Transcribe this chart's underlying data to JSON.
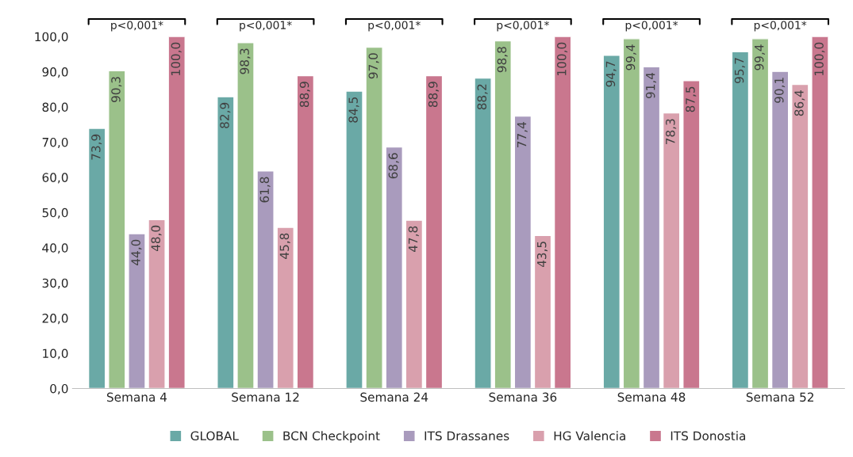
{
  "chart_data": {
    "type": "bar",
    "categories": [
      "Semana 4",
      "Semana 12",
      "Semana 24",
      "Semana 36",
      "Semana 48",
      "Semana 52"
    ],
    "series": [
      {
        "name": "GLOBAL",
        "color": "#6aa9a6",
        "values": [
          73.9,
          82.9,
          84.5,
          88.2,
          94.7,
          95.7
        ],
        "value_labels": [
          "73,9",
          "82,9",
          "84,5",
          "88,2",
          "94,7",
          "95,7"
        ]
      },
      {
        "name": "BCN Checkpoint",
        "color": "#9bc18a",
        "values": [
          90.3,
          98.3,
          97.0,
          98.8,
          99.4,
          99.4
        ],
        "value_labels": [
          "90,3",
          "98,3",
          "97,0",
          "98,8",
          "99,4",
          "99,4"
        ]
      },
      {
        "name": "ITS Drassanes",
        "color": "#a99bbd",
        "values": [
          44.0,
          61.8,
          68.6,
          77.4,
          91.4,
          90.1
        ],
        "value_labels": [
          "44,0",
          "61,8",
          "68,6",
          "77,4",
          "91,4",
          "90,1"
        ]
      },
      {
        "name": "HG Valencia",
        "color": "#d9a0ad",
        "values": [
          48.0,
          45.8,
          47.8,
          43.5,
          78.3,
          86.4
        ],
        "value_labels": [
          "48,0",
          "45,8",
          "47,8",
          "43,5",
          "78,3",
          "86,4"
        ]
      },
      {
        "name": "ITS Donostia",
        "color": "#c9778e",
        "values": [
          100.0,
          88.9,
          88.9,
          100.0,
          87.5,
          100.0
        ],
        "value_labels": [
          "100,0",
          "88,9",
          "88,9",
          "100,0",
          "87,5",
          "100,0"
        ]
      }
    ],
    "ylim": [
      0,
      100
    ],
    "yticks": [
      {
        "value": 0,
        "label": "0,0"
      },
      {
        "value": 10,
        "label": "10,0"
      },
      {
        "value": 20,
        "label": "20,0"
      },
      {
        "value": 30,
        "label": "30,0"
      },
      {
        "value": 40,
        "label": "40,0"
      },
      {
        "value": 50,
        "label": "50,0"
      },
      {
        "value": 60,
        "label": "60,0"
      },
      {
        "value": 70,
        "label": "70,0"
      },
      {
        "value": 80,
        "label": "80,0"
      },
      {
        "value": 90,
        "label": "90,0"
      },
      {
        "value": 100,
        "label": "100,0"
      }
    ],
    "annotations": [
      "p<0,001*",
      "p<0,001*",
      "p<0,001*",
      "p<0,001*",
      "p<0,001*",
      "p<0,001*"
    ],
    "grid": false,
    "legend": "bottom"
  }
}
